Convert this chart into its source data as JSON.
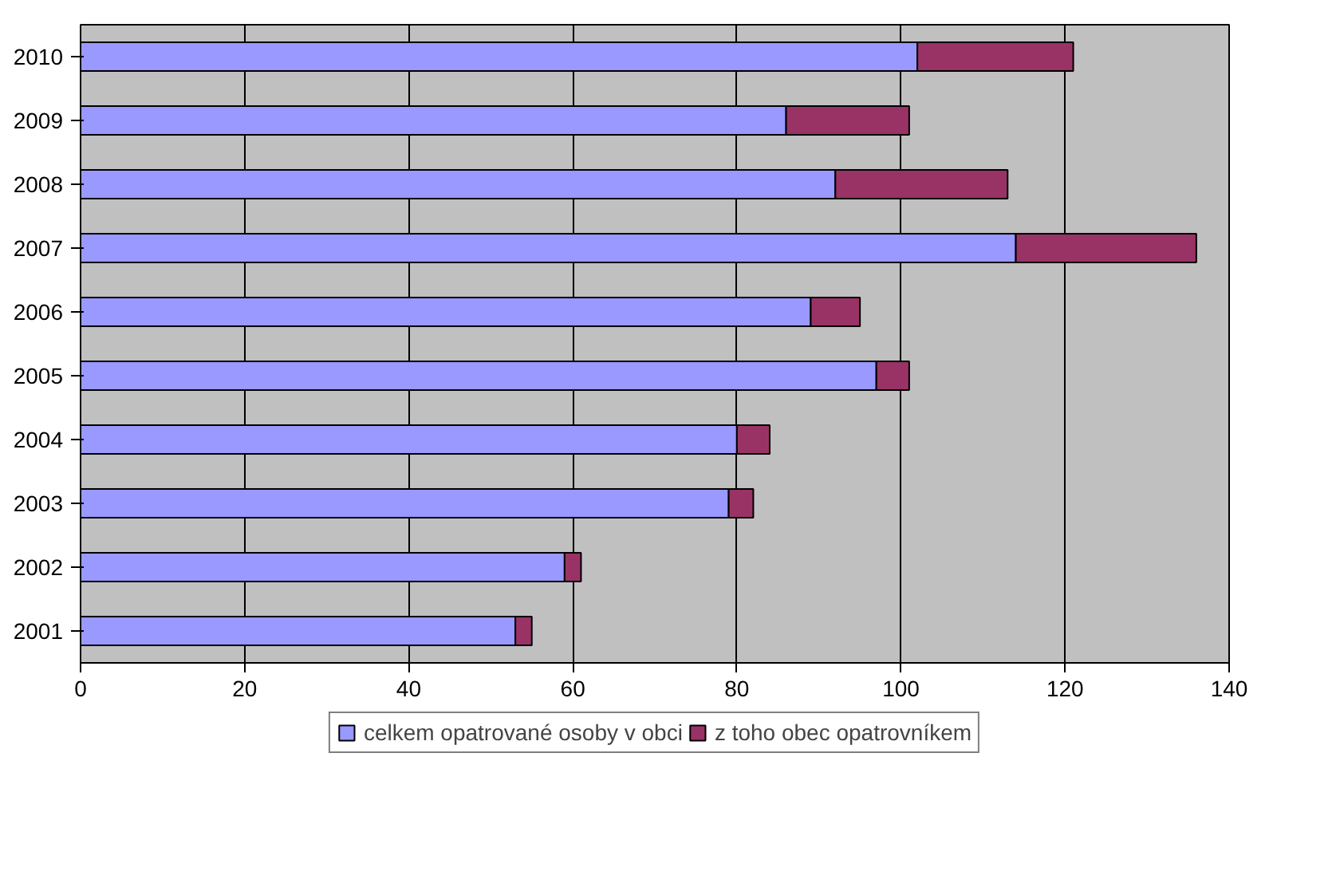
{
  "chart_data": {
    "type": "bar",
    "orientation": "horizontal",
    "stacked": true,
    "categories": [
      "2010",
      "2009",
      "2008",
      "2007",
      "2006",
      "2005",
      "2004",
      "2003",
      "2002",
      "2001"
    ],
    "series": [
      {
        "name": "celkem opatrované osoby v obci",
        "color": "#9999ff",
        "values": [
          102,
          86,
          92,
          114,
          89,
          97,
          80,
          79,
          59,
          53
        ]
      },
      {
        "name": "z toho obec opatrovníkem",
        "color": "#993366",
        "values": [
          19,
          15,
          21,
          22,
          6,
          4,
          4,
          3,
          2,
          2
        ]
      }
    ],
    "xlim": [
      0,
      140
    ],
    "xticks": [
      0,
      20,
      40,
      60,
      80,
      100,
      120,
      140
    ],
    "grid": "x",
    "legend": "bottom"
  }
}
